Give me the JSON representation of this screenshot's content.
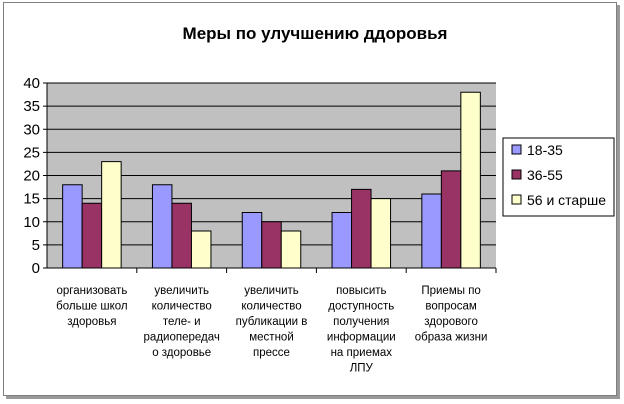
{
  "chart_data": {
    "type": "bar",
    "title": "Меры по улучшению ддоровья",
    "categories": [
      [
        "организовать",
        "больше школ",
        "здоровья"
      ],
      [
        "увеличить",
        "количество",
        "теле- и",
        "радиопередач",
        "о здоровье"
      ],
      [
        "увеличить",
        "количество",
        "публикации в",
        "местной",
        "прессе"
      ],
      [
        "повысить",
        "доступность",
        "получения",
        "информации",
        "на приемах",
        "ЛПУ"
      ],
      [
        "Приемы по",
        "вопросам",
        "здорового",
        "образа жизни"
      ]
    ],
    "series": [
      {
        "name": "18-35",
        "color": "#9999ff",
        "values": [
          18,
          18,
          12,
          12,
          16
        ]
      },
      {
        "name": "36-55",
        "color": "#993366",
        "values": [
          14,
          14,
          10,
          17,
          21
        ]
      },
      {
        "name": "56 и старше",
        "color": "#ffffcc",
        "values": [
          23,
          8,
          8,
          15,
          38
        ]
      }
    ],
    "ylim": [
      0,
      40
    ],
    "yticks": [
      0,
      5,
      10,
      15,
      20,
      25,
      30,
      35,
      40
    ],
    "grid": true,
    "plot_background": "#c0c0c0",
    "legend_position": "right"
  }
}
